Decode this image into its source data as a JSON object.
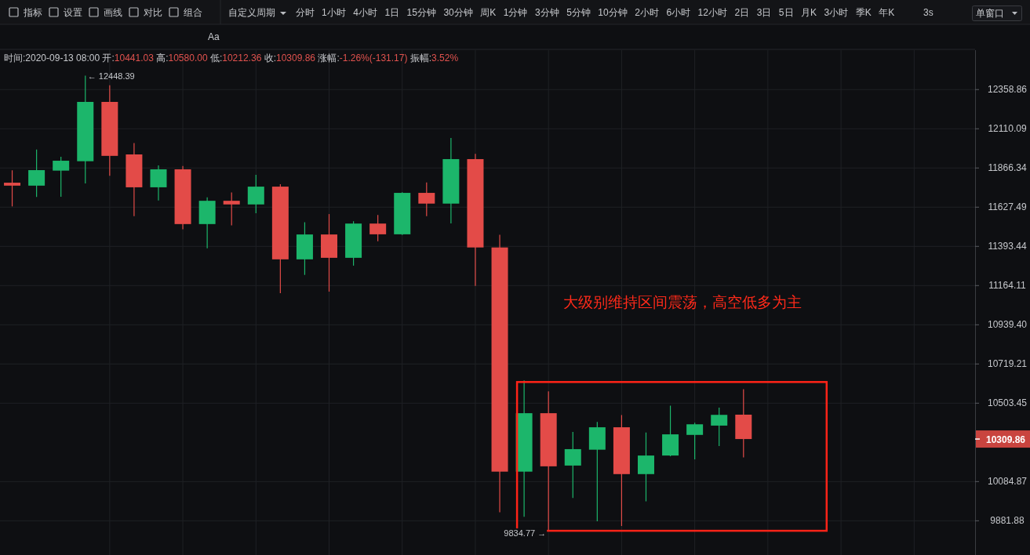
{
  "chart_data": {
    "type": "candlestick",
    "subtitle": "时间:2020-09-13 08:00 开:10441.03 高:10580.00 低:10212.36 收:10309.86 涨幅:-1.26%(-131.17) 振幅:3.52%",
    "annotations": [
      "指标",
      "设置",
      "画线",
      "对比",
      "组合",
      "自定义周期",
      "分时",
      "1小时",
      "4小时",
      "1日",
      "15分钟",
      "30分钟",
      "周K",
      "1分钟",
      "3分钟",
      "5分钟",
      "10分钟",
      "2小时",
      "6小时",
      "12小时",
      "2日",
      "3日",
      "5日",
      "月K",
      "3小时",
      "季K",
      "年K",
      "3s",
      "单窗口",
      "Aa",
      "← 12448.39",
      "9834.77 →",
      "大级别维持区间震荡，高空低多为主"
    ],
    "categories": [
      null,
      null,
      null,
      null,
      null,
      null,
      null,
      null,
      null,
      null,
      null,
      null,
      null,
      null,
      null,
      null,
      null,
      null,
      null,
      null,
      null,
      null,
      null,
      null,
      null,
      null,
      null,
      null,
      null,
      null,
      null,
      null,
      null,
      null,
      null,
      null,
      null,
      null,
      null,
      null
    ],
    "ohlc": [
      [
        11776,
        11852,
        11632,
        11758
      ],
      [
        11758,
        11980,
        11689,
        11853
      ],
      [
        11850,
        11935,
        11690,
        11911
      ],
      [
        11908,
        12448.39,
        11772,
        12280
      ],
      [
        12280,
        12386,
        11818,
        11941
      ],
      [
        11950,
        12021,
        11573,
        11748
      ],
      [
        11748,
        11882,
        11668,
        11858
      ],
      [
        11858,
        11879,
        11495,
        11526
      ],
      [
        11526,
        11687,
        11382,
        11666
      ],
      [
        11666,
        11717,
        11518,
        11644
      ],
      [
        11644,
        11824,
        11591,
        11752
      ],
      [
        11752,
        11767,
        11120,
        11317
      ],
      [
        11317,
        11537,
        11226,
        11464
      ],
      [
        11464,
        11586,
        11129,
        11326
      ],
      [
        11326,
        11543,
        11280,
        11529
      ],
      [
        11529,
        11581,
        11424,
        11465
      ],
      [
        11465,
        11718,
        11461,
        11714
      ],
      [
        11714,
        11777,
        11573,
        11649
      ],
      [
        11649,
        12052,
        11530,
        11921
      ],
      [
        11921,
        11954,
        11162,
        11387
      ],
      [
        11387,
        11462,
        9926,
        10137
      ],
      [
        10137,
        10628,
        9902,
        10449
      ],
      [
        10449,
        10568,
        9834.77,
        10165
      ],
      [
        10169,
        10348,
        9999,
        10256
      ],
      [
        10253,
        10402,
        9879,
        10373
      ],
      [
        10373,
        10439,
        9855,
        10124
      ],
      [
        10124,
        10345,
        9982,
        10222
      ],
      [
        10222,
        10490,
        10218,
        10335
      ],
      [
        10332,
        10398,
        10202,
        10389
      ],
      [
        10382,
        10479,
        10272,
        10440
      ],
      [
        10441.03,
        10580.0,
        10212.36,
        10309.86
      ],
      null,
      null,
      null,
      null,
      null,
      null,
      null,
      null,
      null
    ],
    "colors": [
      "#e34b48",
      "#1cb66b",
      "#1cb66b",
      "#1cb66b",
      "#e34b48",
      "#e34b48",
      "#1cb66b",
      "#e34b48",
      "#1cb66b",
      "#e34b48",
      "#1cb66b",
      "#e34b48",
      "#1cb66b",
      "#e34b48",
      "#1cb66b",
      "#e34b48",
      "#1cb66b",
      "#e34b48",
      "#1cb66b",
      "#e34b48",
      "#e34b48",
      "#1cb66b",
      "#e34b48",
      "#1cb66b",
      "#1cb66b",
      "#e34b48",
      "#1cb66b",
      "#1cb66b",
      "#1cb66b",
      "#1cb66b",
      "#e34b48",
      null,
      null,
      null,
      null,
      null,
      null,
      null,
      null,
      null
    ],
    "ylim": [
      9708,
      12614
    ],
    "yticks": [
      12358.86,
      12110.09,
      11866.34,
      11627.49,
      11393.44,
      11164.11,
      {
        "value": 10939.4,
        "label": "10939.40"
      },
      10719.21,
      10503.45,
      {
        "value": 10309.86,
        "label": "10309.86"
      },
      10084.87,
      9881.88
    ],
    "log": "y",
    "grid": true
  }
}
